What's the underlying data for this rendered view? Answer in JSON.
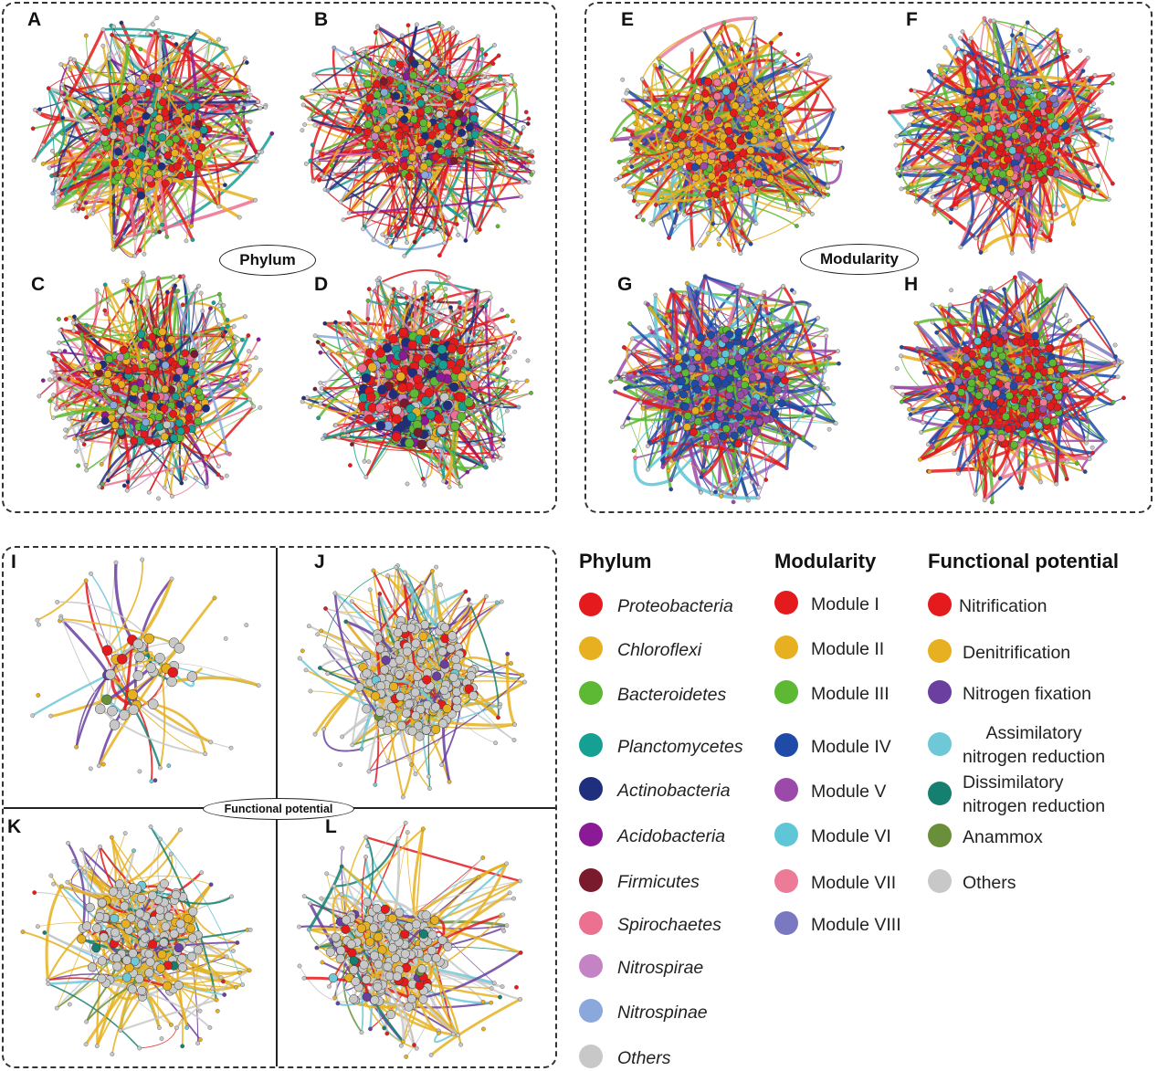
{
  "figure": {
    "groups": [
      {
        "label": "Phylum",
        "panels": [
          "A",
          "B",
          "C",
          "D"
        ]
      },
      {
        "label": "Modularity",
        "panels": [
          "E",
          "F",
          "G",
          "H"
        ]
      },
      {
        "label": "Functional potential",
        "panels": [
          "I",
          "J",
          "K",
          "L"
        ]
      }
    ]
  },
  "legend": {
    "phylum": {
      "title": "Phylum",
      "items": [
        {
          "label": "Proteobacteria",
          "color": "#e41a1c"
        },
        {
          "label": "Chloroflexi",
          "color": "#e6b020"
        },
        {
          "label": "Bacteroidetes",
          "color": "#5db833"
        },
        {
          "label": "Planctomycetes",
          "color": "#15a093"
        },
        {
          "label": "Actinobacteria",
          "color": "#1f2f7e"
        },
        {
          "label": "Acidobacteria",
          "color": "#8b1a96"
        },
        {
          "label": "Firmicutes",
          "color": "#7a1a2c"
        },
        {
          "label": "Spirochaetes",
          "color": "#ec7191"
        },
        {
          "label": "Nitrospirae",
          "color": "#c483c4"
        },
        {
          "label": "Nitrospinae",
          "color": "#8aa8dc"
        },
        {
          "label": "Others",
          "color": "#c8c8c8"
        }
      ]
    },
    "modularity": {
      "title": "Modularity",
      "items": [
        {
          "label": "Module I",
          "color": "#e41a1c"
        },
        {
          "label": "Module II",
          "color": "#e6b020"
        },
        {
          "label": "Module III",
          "color": "#5db833"
        },
        {
          "label": "Module IV",
          "color": "#1f4aa8"
        },
        {
          "label": "Module V",
          "color": "#9b4aaa"
        },
        {
          "label": "Module VI",
          "color": "#5ec6d6"
        },
        {
          "label": "Module VII",
          "color": "#ec7b98"
        },
        {
          "label": "Module VIII",
          "color": "#7a78c0"
        }
      ]
    },
    "functional": {
      "title": "Functional potential",
      "items": [
        {
          "label": "Nitrification",
          "color": "#e41a1c"
        },
        {
          "label": "Denitrification",
          "color": "#e6b020"
        },
        {
          "label": "Nitrogen fixation",
          "color": "#6a3fa0"
        },
        {
          "label": "Assimilatory\nnitrogen reduction",
          "color": "#6ec8d8"
        },
        {
          "label": "Dissimilatory\nnitrogen reduction",
          "color": "#158070"
        },
        {
          "label": "Anammox",
          "color": "#6a8f3a"
        },
        {
          "label": "Others",
          "color": "#c8c8c8"
        }
      ]
    }
  }
}
